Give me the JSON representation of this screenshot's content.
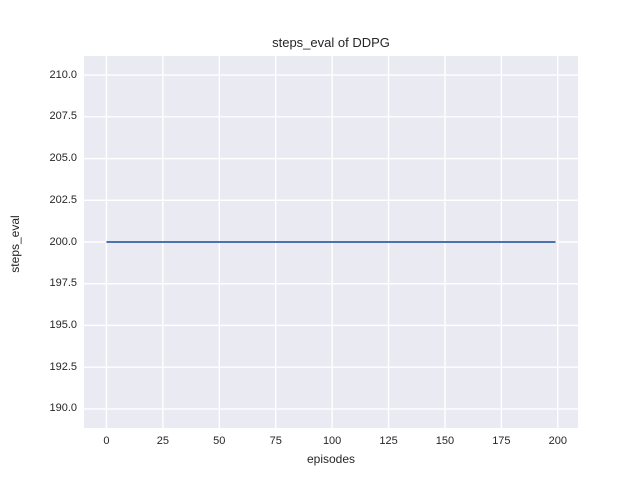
{
  "chart": {
    "title": "steps_eval of DDPG",
    "xlabel": "episodes",
    "ylabel": "steps_eval"
  },
  "chart_data": {
    "type": "line",
    "title": "steps_eval of DDPG",
    "xlabel": "episodes",
    "ylabel": "steps_eval",
    "series": [
      {
        "name": "DDPG steps_eval",
        "x": [
          0,
          199
        ],
        "values": [
          200.0,
          200.0
        ]
      }
    ],
    "xticks": [
      0,
      25,
      50,
      75,
      100,
      125,
      150,
      175,
      200
    ],
    "xtick_labels": [
      "0",
      "25",
      "50",
      "75",
      "100",
      "125",
      "150",
      "175",
      "200"
    ],
    "yticks": [
      210.0,
      207.5,
      205.0,
      202.5,
      200.0,
      197.5,
      195.0,
      192.5,
      190.0
    ],
    "ytick_labels": [
      "210.0",
      "207.5",
      "205.0",
      "202.5",
      "200.0",
      "197.5",
      "195.0",
      "192.5",
      "190.0"
    ],
    "xlim": [
      -9.95,
      208.95
    ],
    "ylim": [
      188.86,
      211.14
    ],
    "grid": true,
    "legend": false,
    "colors": {
      "line": "#4C72B0",
      "plot_background": "#EAEAF2",
      "grid": "#FFFFFF",
      "figure_background": "#FFFFFF",
      "text": "#262626"
    }
  }
}
